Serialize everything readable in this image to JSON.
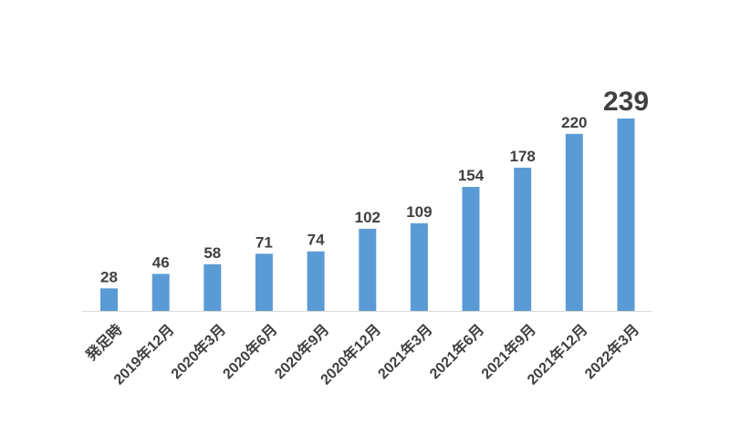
{
  "chart_data": {
    "type": "bar",
    "title": "",
    "xlabel": "",
    "ylabel": "",
    "categories": [
      "発足時",
      "2019年12月",
      "2020年3月",
      "2020年6月",
      "2020年9月",
      "2020年12月",
      "2021年3月",
      "2021年6月",
      "2021年9月",
      "2021年12月",
      "2022年3月"
    ],
    "values": [
      28,
      46,
      58,
      71,
      74,
      102,
      109,
      154,
      178,
      220,
      239
    ],
    "ylim": [
      0,
      239
    ],
    "grid": false,
    "legend": "none",
    "highlight_index": 10,
    "colors": {
      "bar": "#5b9bd5",
      "label": "#404040",
      "axis": "#d9d9d9"
    }
  }
}
